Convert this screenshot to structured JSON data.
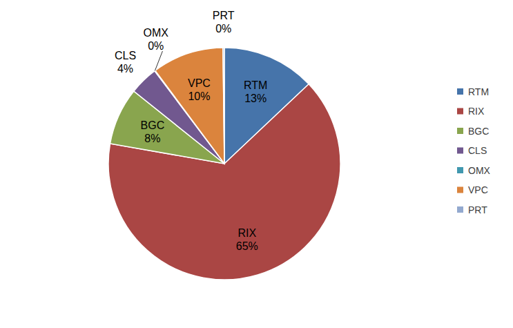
{
  "chart_data": {
    "type": "pie",
    "categories": [
      "RTM",
      "RIX",
      "BGC",
      "CLS",
      "OMX",
      "VPC",
      "PRT"
    ],
    "values": [
      13,
      65,
      8,
      4,
      0.1,
      10,
      0.2
    ],
    "value_labels": [
      "13%",
      "65%",
      "8%",
      "4%",
      "0%",
      "10%",
      "0%"
    ],
    "colors": [
      "#4674aa",
      "#aa4644",
      "#89a54e",
      "#71588f",
      "#4198af",
      "#db843d",
      "#93a9cf"
    ],
    "data_labels": true,
    "legend": "right"
  }
}
